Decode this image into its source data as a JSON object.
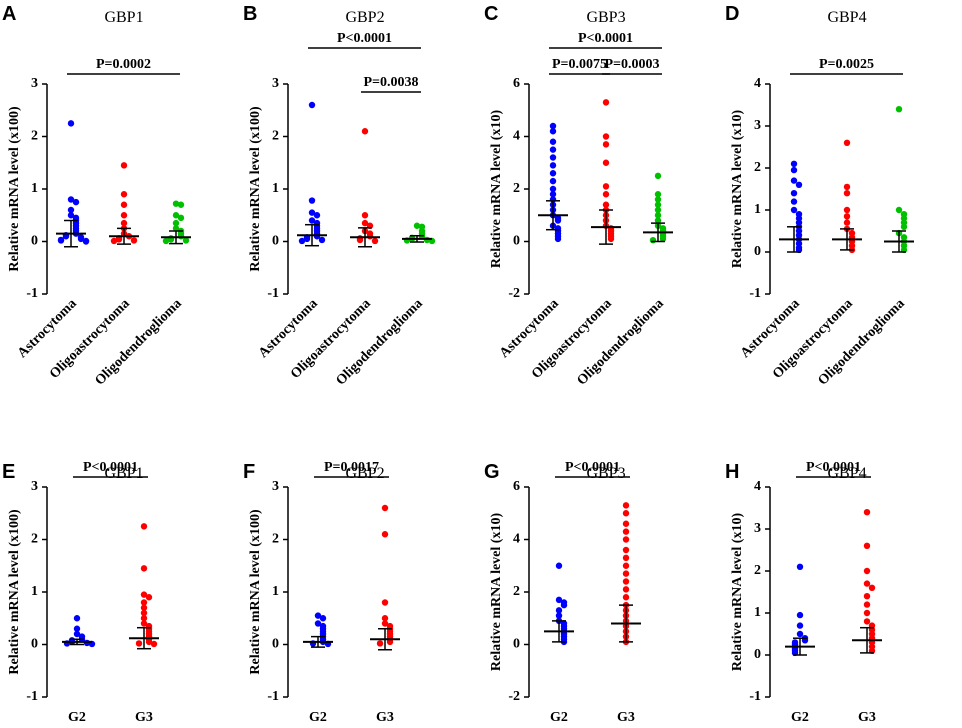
{
  "chart_data": [
    {
      "type": "strip",
      "panel_label": "A",
      "title": "GBP1",
      "ylabel": "Relative mRNA level (x100)",
      "categories": [
        "Astrocytoma",
        "Oligoastrocytoma",
        "Oligodendroglioma"
      ],
      "ylim": [
        -1,
        3
      ],
      "yticks": [
        -1,
        0,
        1,
        2,
        3
      ],
      "groups": [
        {
          "color": "#0000ff",
          "values": [
            2.25,
            0.8,
            0.75,
            0.6,
            0.5,
            0.45,
            0.4,
            0.35,
            0.3,
            0.25,
            0.2,
            0.15,
            0.12,
            0.1,
            0.08,
            0.05,
            0.03,
            0.02,
            0.01,
            0
          ],
          "mean": 0.15,
          "sd": 0.25
        },
        {
          "color": "#ff0000",
          "values": [
            1.45,
            0.9,
            0.7,
            0.5,
            0.35,
            0.25,
            0.15,
            0.1,
            0.06,
            0.04,
            0.02,
            0.01
          ],
          "mean": 0.1,
          "sd": 0.15
        },
        {
          "color": "#00c000",
          "values": [
            0.72,
            0.7,
            0.5,
            0.45,
            0.35,
            0.25,
            0.2,
            0.15,
            0.1,
            0.06,
            0.04,
            0.02,
            0.01
          ],
          "mean": 0.08,
          "sd": 0.12
        }
      ],
      "comparisons": [
        {
          "groups": [
            0,
            2
          ],
          "label": "P=0.0002"
        }
      ]
    },
    {
      "type": "strip",
      "panel_label": "B",
      "title": "GBP2",
      "ylabel": "Relative mRNA level (x100)",
      "categories": [
        "Astrocytoma",
        "Oligoastrocytoma",
        "Oligodendroglioma"
      ],
      "ylim": [
        -1,
        3
      ],
      "yticks": [
        -1,
        0,
        1,
        2,
        3
      ],
      "groups": [
        {
          "color": "#0000ff",
          "values": [
            2.6,
            0.78,
            0.55,
            0.5,
            0.4,
            0.35,
            0.3,
            0.25,
            0.2,
            0.15,
            0.1,
            0.08,
            0.05,
            0.03,
            0.01
          ],
          "mean": 0.12,
          "sd": 0.2
        },
        {
          "color": "#ff0000",
          "values": [
            2.1,
            0.5,
            0.35,
            0.3,
            0.2,
            0.15,
            0.1,
            0.06,
            0.03,
            0.01
          ],
          "mean": 0.08,
          "sd": 0.18
        },
        {
          "color": "#00c000",
          "values": [
            0.3,
            0.28,
            0.2,
            0.15,
            0.1,
            0.07,
            0.05,
            0.03,
            0.02,
            0.01
          ],
          "mean": 0.05,
          "sd": 0.06
        }
      ],
      "comparisons": [
        {
          "groups": [
            0,
            2
          ],
          "label": "P<0.0001"
        },
        {
          "groups": [
            1,
            2
          ],
          "label": "P=0.0038"
        }
      ]
    },
    {
      "type": "strip",
      "panel_label": "C",
      "title": "GBP3",
      "ylabel": "Relative mRNA level (x10)",
      "categories": [
        "Astrocytoma",
        "Oligoastrocytoma",
        "Oligodendroglioma"
      ],
      "ylim": [
        -2,
        6
      ],
      "yticks": [
        -2,
        0,
        2,
        4,
        6
      ],
      "groups": [
        {
          "color": "#0000ff",
          "values": [
            4.4,
            4.2,
            3.8,
            3.5,
            3.2,
            2.9,
            2.6,
            2.3,
            2.0,
            1.8,
            1.6,
            1.4,
            1.2,
            1.0,
            0.9,
            0.8,
            0.6,
            0.5,
            0.4,
            0.3,
            0.2,
            0.1
          ],
          "mean": 1.0,
          "sd": 0.55
        },
        {
          "color": "#ff0000",
          "values": [
            5.3,
            4.0,
            3.7,
            3.0,
            2.1,
            1.8,
            1.4,
            1.2,
            1.0,
            0.8,
            0.6,
            0.5,
            0.4,
            0.3,
            0.2,
            0.1
          ],
          "mean": 0.55,
          "sd": 0.65
        },
        {
          "color": "#00c000",
          "values": [
            2.5,
            1.8,
            1.6,
            1.4,
            1.2,
            1.0,
            0.8,
            0.6,
            0.5,
            0.4,
            0.3,
            0.2,
            0.1,
            0.05
          ],
          "mean": 0.35,
          "sd": 0.35
        }
      ],
      "comparisons": [
        {
          "groups": [
            0,
            2
          ],
          "label": "P<0.0001"
        },
        {
          "groups": [
            0,
            1
          ],
          "label": "P=0.0075"
        },
        {
          "groups": [
            1,
            2
          ],
          "label": "P=0.0003"
        }
      ]
    },
    {
      "type": "strip",
      "panel_label": "D",
      "title": "GBP4",
      "ylabel": "Relative mRNA level (x10)",
      "categories": [
        "Astrocytoma",
        "Oligoastrocytoma",
        "Oligodendroglioma"
      ],
      "ylim": [
        -1,
        4
      ],
      "yticks": [
        -1,
        0,
        1,
        2,
        3,
        4
      ],
      "groups": [
        {
          "color": "#0000ff",
          "values": [
            2.1,
            1.95,
            1.7,
            1.6,
            1.4,
            1.2,
            1.0,
            0.9,
            0.8,
            0.7,
            0.6,
            0.5,
            0.4,
            0.3,
            0.2,
            0.1,
            0.05
          ],
          "mean": 0.3,
          "sd": 0.3
        },
        {
          "color": "#ff0000",
          "values": [
            2.6,
            1.55,
            1.4,
            1.0,
            0.85,
            0.7,
            0.55,
            0.45,
            0.35,
            0.25,
            0.15,
            0.05
          ],
          "mean": 0.3,
          "sd": 0.25
        },
        {
          "color": "#00c000",
          "values": [
            3.4,
            1.0,
            0.9,
            0.8,
            0.7,
            0.6,
            0.45,
            0.35,
            0.25,
            0.15,
            0.05
          ],
          "mean": 0.25,
          "sd": 0.25
        }
      ],
      "comparisons": [
        {
          "groups": [
            0,
            2
          ],
          "label": "P=0.0025"
        }
      ]
    },
    {
      "type": "strip",
      "panel_label": "E",
      "title": "GBP1",
      "ylabel": "Relative mRNA level (x100)",
      "categories": [
        "G2",
        "G3"
      ],
      "ylim": [
        -1,
        3
      ],
      "yticks": [
        -1,
        0,
        1,
        2,
        3
      ],
      "groups": [
        {
          "color": "#0000ff",
          "values": [
            0.5,
            0.3,
            0.2,
            0.15,
            0.1,
            0.08,
            0.05,
            0.03,
            0.02,
            0.01
          ],
          "mean": 0.05,
          "sd": 0.05
        },
        {
          "color": "#ff0000",
          "values": [
            2.25,
            1.45,
            0.95,
            0.9,
            0.8,
            0.7,
            0.6,
            0.5,
            0.4,
            0.35,
            0.3,
            0.25,
            0.2,
            0.15,
            0.1,
            0.05,
            0.02,
            0.01
          ],
          "mean": 0.12,
          "sd": 0.2
        }
      ],
      "comparisons": [
        {
          "groups": [
            0,
            1
          ],
          "label": "P<0.0001"
        }
      ]
    },
    {
      "type": "strip",
      "panel_label": "F",
      "title": "GBP2",
      "ylabel": "Relative mRNA level (x100)",
      "categories": [
        "G2",
        "G3"
      ],
      "ylim": [
        -1,
        3
      ],
      "yticks": [
        -1,
        0,
        1,
        2,
        3
      ],
      "groups": [
        {
          "color": "#0000ff",
          "values": [
            0.55,
            0.5,
            0.4,
            0.35,
            0.3,
            0.25,
            0.2,
            0.15,
            0.1,
            0.05,
            0.02,
            0.01
          ],
          "mean": 0.05,
          "sd": 0.1
        },
        {
          "color": "#ff0000",
          "values": [
            2.6,
            2.1,
            0.8,
            0.5,
            0.4,
            0.35,
            0.3,
            0.25,
            0.2,
            0.15,
            0.1,
            0.05,
            0.02
          ],
          "mean": 0.1,
          "sd": 0.2
        }
      ],
      "comparisons": [
        {
          "groups": [
            0,
            1
          ],
          "label": "P=0.0017"
        }
      ]
    },
    {
      "type": "strip",
      "panel_label": "G",
      "title": "GBP3",
      "ylabel": "Relative mRNA level (x10)",
      "categories": [
        "G2",
        "G3"
      ],
      "ylim": [
        -2,
        6
      ],
      "yticks": [
        -2,
        0,
        2,
        4,
        6
      ],
      "groups": [
        {
          "color": "#0000ff",
          "values": [
            3.0,
            1.7,
            1.6,
            1.5,
            1.3,
            1.1,
            0.9,
            0.8,
            0.7,
            0.6,
            0.5,
            0.4,
            0.3,
            0.2,
            0.1
          ],
          "mean": 0.5,
          "sd": 0.4
        },
        {
          "color": "#ff0000",
          "values": [
            5.3,
            5.0,
            4.6,
            4.3,
            4.0,
            3.6,
            3.3,
            3.0,
            2.7,
            2.4,
            2.1,
            1.8,
            1.5,
            1.3,
            1.1,
            0.9,
            0.7,
            0.5,
            0.3,
            0.1
          ],
          "mean": 0.8,
          "sd": 0.7
        }
      ],
      "comparisons": [
        {
          "groups": [
            0,
            1
          ],
          "label": "P<0.0001"
        }
      ]
    },
    {
      "type": "strip",
      "panel_label": "H",
      "title": "GBP4",
      "ylabel": "Relative mRNA level (x10)",
      "categories": [
        "G2",
        "G3"
      ],
      "ylim": [
        -1,
        4
      ],
      "yticks": [
        -1,
        0,
        1,
        2,
        3,
        4
      ],
      "groups": [
        {
          "color": "#0000ff",
          "values": [
            2.1,
            0.95,
            0.7,
            0.5,
            0.4,
            0.35,
            0.3,
            0.25,
            0.2,
            0.15,
            0.1,
            0.05
          ],
          "mean": 0.2,
          "sd": 0.2
        },
        {
          "color": "#ff0000",
          "values": [
            3.4,
            2.6,
            2.0,
            1.7,
            1.6,
            1.4,
            1.2,
            1.0,
            0.8,
            0.7,
            0.6,
            0.5,
            0.4,
            0.3,
            0.2,
            0.1
          ],
          "mean": 0.35,
          "sd": 0.3
        }
      ],
      "comparisons": [
        {
          "groups": [
            0,
            1
          ],
          "label": "P<0.0001"
        }
      ]
    }
  ]
}
